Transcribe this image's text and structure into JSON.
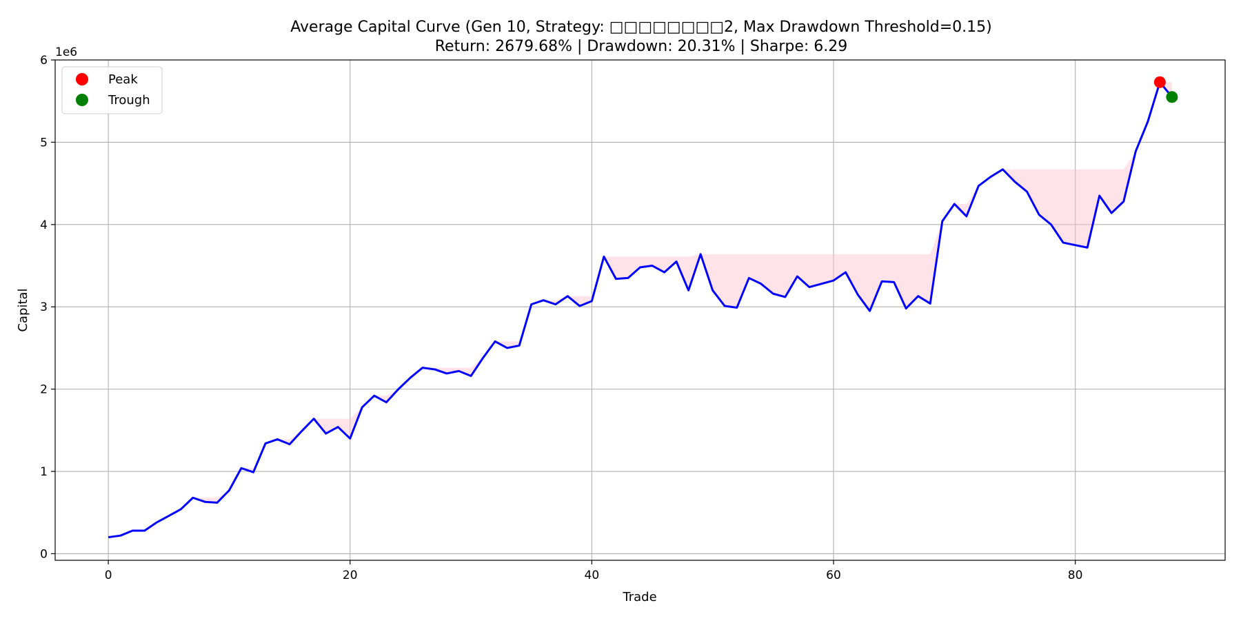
{
  "chart_data": {
    "type": "line",
    "title": "Average Capital Curve (Gen 10, Strategy: □□□□□□□□2, Max Drawdown Threshold=0.15)",
    "subtitle": "Return: 2679.68% | Drawdown: 20.31% | Sharpe: 6.29",
    "xlabel": "Trade",
    "ylabel": "Capital",
    "y_offset_label": "1e6",
    "xlim": [
      -4.4,
      92.4
    ],
    "ylim": [
      -0.08,
      6.0
    ],
    "x_ticks": [
      0,
      20,
      40,
      60,
      80
    ],
    "x_tick_labels": [
      "0",
      "20",
      "40",
      "60",
      "80"
    ],
    "y_ticks": [
      0,
      1,
      2,
      3,
      4,
      5,
      6
    ],
    "y_tick_labels": [
      "0",
      "1",
      "2",
      "3",
      "4",
      "5",
      "6"
    ],
    "grid": true,
    "legend_position": "top-left",
    "line_color": "#0000ff",
    "drawdown_fill_color": "#ffc0cb",
    "series": [
      {
        "values": [
          0.2,
          0.22,
          0.28,
          0.28,
          0.38,
          0.46,
          0.54,
          0.68,
          0.63,
          0.62,
          0.77,
          1.04,
          0.99,
          1.34,
          1.39,
          1.33,
          1.49,
          1.64,
          1.46,
          1.54,
          1.4,
          1.78,
          1.92,
          1.84,
          2.0,
          2.14,
          2.26,
          2.24,
          2.19,
          2.22,
          2.16,
          2.38,
          2.58,
          2.5,
          2.53,
          3.03,
          3.08,
          3.03,
          3.13,
          3.01,
          3.07,
          3.61,
          3.34,
          3.35,
          3.48,
          3.5,
          3.42,
          3.55,
          3.2,
          3.64,
          3.2,
          3.01,
          2.99,
          3.35,
          3.28,
          3.16,
          3.12,
          3.37,
          3.24,
          3.28,
          3.32,
          3.42,
          3.15,
          2.95,
          3.31,
          3.3,
          2.98,
          3.13,
          3.04,
          4.04,
          4.25,
          4.1,
          4.47,
          4.58,
          4.67,
          4.52,
          4.4,
          4.12,
          4.0,
          3.78,
          3.75,
          3.72,
          4.35,
          4.14,
          4.28,
          4.89,
          5.25,
          5.73,
          5.55
        ]
      }
    ],
    "markers": [
      {
        "name": "Peak",
        "x": 87,
        "y": 5.73,
        "color": "#ff0000"
      },
      {
        "name": "Trough",
        "x": 88,
        "y": 5.55,
        "color": "#008000"
      }
    ]
  }
}
